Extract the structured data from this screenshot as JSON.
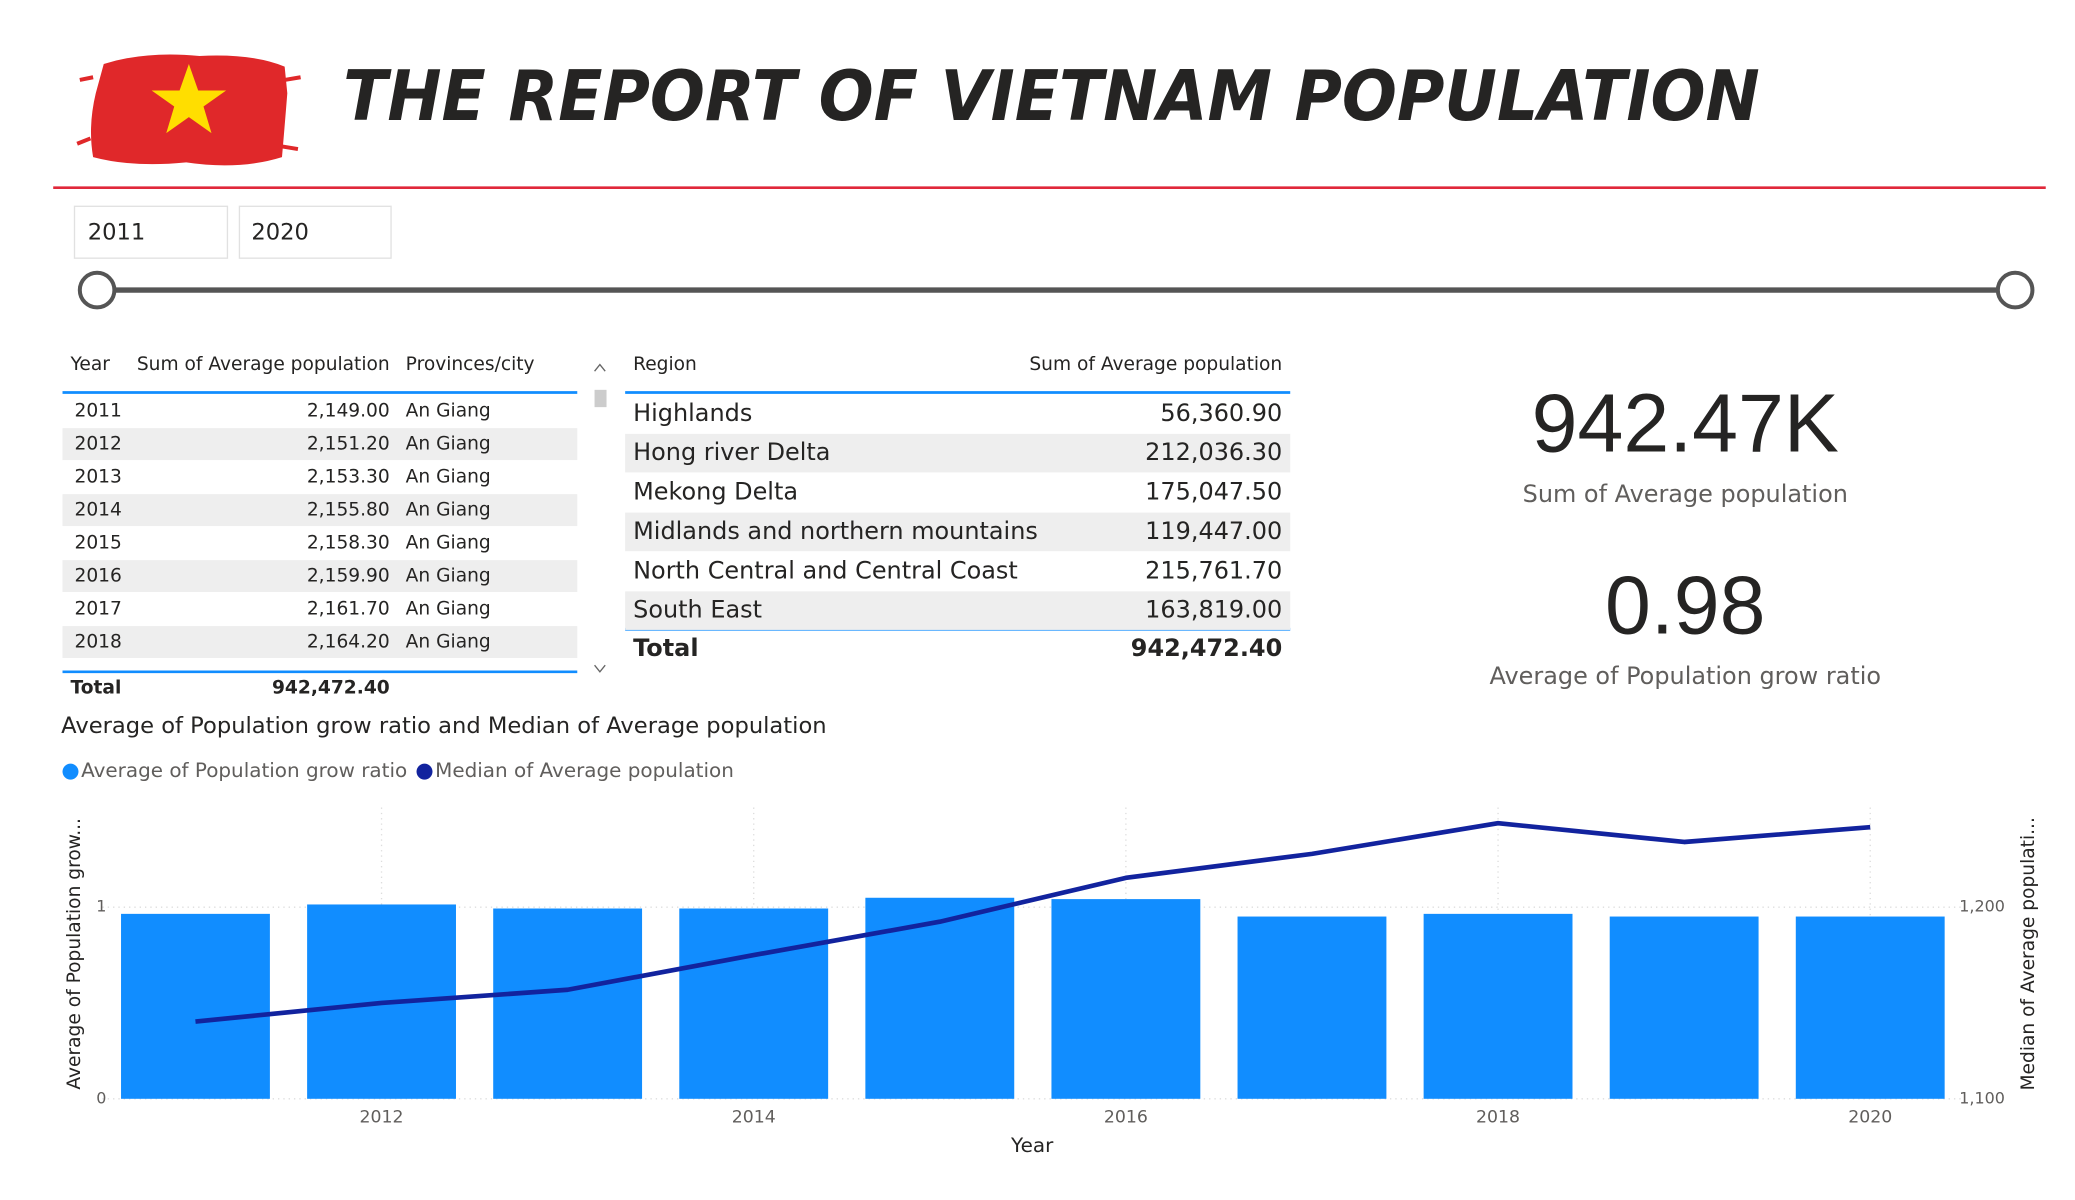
{
  "header": {
    "title": "THE REPORT OF VIETNAM POPULATION"
  },
  "slicer": {
    "start": "2011",
    "end": "2020"
  },
  "province_table": {
    "columns": [
      "Year",
      "Sum of Average population",
      "Provinces/city"
    ],
    "rows": [
      [
        "2011",
        "2,149.00",
        "An Giang"
      ],
      [
        "2012",
        "2,151.20",
        "An Giang"
      ],
      [
        "2013",
        "2,153.30",
        "An Giang"
      ],
      [
        "2014",
        "2,155.80",
        "An Giang"
      ],
      [
        "2015",
        "2,158.30",
        "An Giang"
      ],
      [
        "2016",
        "2,159.90",
        "An Giang"
      ],
      [
        "2017",
        "2,161.70",
        "An Giang"
      ],
      [
        "2018",
        "2,164.20",
        "An Giang"
      ]
    ],
    "total": [
      "Total",
      "942,472.40"
    ]
  },
  "region_table": {
    "columns": [
      "Region",
      "Sum of Average population"
    ],
    "rows": [
      [
        "Highlands",
        "56,360.90"
      ],
      [
        "Hong river Delta",
        "212,036.30"
      ],
      [
        "Mekong Delta",
        "175,047.50"
      ],
      [
        "Midlands and northern mountains",
        "119,447.00"
      ],
      [
        "North Central and Central Coast",
        "215,761.70"
      ],
      [
        "South East",
        "163,819.00"
      ]
    ],
    "total": [
      "Total",
      "942,472.40"
    ]
  },
  "cards": [
    {
      "value": "942.47K",
      "label": "Sum of Average population"
    },
    {
      "value": "0.98",
      "label": "Average of Population grow ratio"
    }
  ],
  "chart_data": {
    "type": "bar-line",
    "title": "Average of Population grow ratio and Median of Average population",
    "x_label": "Year",
    "y_label": "Average of Population grow...",
    "y2_label": "Median of Average populati...",
    "x": [
      2011,
      2012,
      2013,
      2014,
      2015,
      2016,
      2017,
      2018,
      2019,
      2020
    ],
    "xlim": [
      2010.5,
      2020.5
    ],
    "xticks": [
      2012,
      2014,
      2016,
      2018,
      2020
    ],
    "ylim": [
      0,
      1.52
    ],
    "yticks": [
      0,
      1
    ],
    "y2lim": [
      1100,
      1252
    ],
    "y2ticks": [
      {
        "value": 1100,
        "label": "1,100"
      },
      {
        "value": 1200,
        "label": "1,200"
      }
    ],
    "grid": true,
    "series": [
      {
        "name": "Average of Population grow ratio",
        "type": "bar",
        "color": "#118DFF",
        "values": [
          0.965,
          1.014,
          0.993,
          0.993,
          1.049,
          1.042,
          0.951,
          0.965,
          0.951,
          0.951
        ]
      },
      {
        "name": "Median of Average population",
        "type": "line",
        "axis": "y2",
        "color": "#12239E",
        "values": [
          1140.3,
          1150,
          1156.9,
          1175,
          1192.4,
          1215.3,
          1227.8,
          1243.8,
          1234,
          1241.7
        ]
      }
    ]
  }
}
